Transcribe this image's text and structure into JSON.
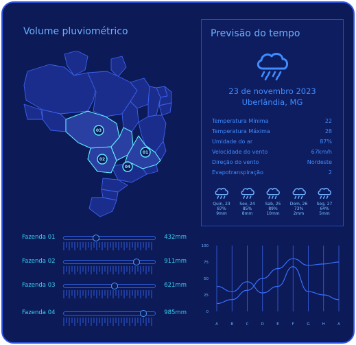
{
  "colors": {
    "background": "#0c1a58",
    "frame": "#2f55e6",
    "accent_text": "#3f8cff",
    "farm_text": "#39d1f0",
    "map_fill": "#1b2d8c",
    "map_highlight": "#2a3fa2",
    "map_border": "#5ff0ff"
  },
  "rain_panel": {
    "title": "Volume pluviométrico"
  },
  "map": {
    "markers": [
      {
        "label": "03"
      },
      {
        "label": "01"
      },
      {
        "label": "02"
      },
      {
        "label": "04"
      }
    ]
  },
  "forecast": {
    "title": "Previsão do tempo",
    "icon": "rain-cloud-icon",
    "date": "23 de novembro 2023",
    "city": "Uberlândia, MG",
    "metrics": [
      {
        "label": "Temperatura Mínima",
        "value": "22"
      },
      {
        "label": "Temperatura Máxima",
        "value": "28"
      },
      {
        "label": "Umidade do ar",
        "value": "87%"
      },
      {
        "label": "Velocidade do vento",
        "value": "67km/h"
      },
      {
        "label": "Direção do vento",
        "value": "Nordeste"
      },
      {
        "label": "Evapotranspiração",
        "value": "2"
      }
    ],
    "days": [
      {
        "day": "Quin, 23",
        "humidity": "87%",
        "rain": "9mm"
      },
      {
        "day": "Sex, 24",
        "humidity": "85%",
        "rain": "8mm"
      },
      {
        "day": "Sab, 25",
        "humidity": "89%",
        "rain": "10mm"
      },
      {
        "day": "Dom, 26",
        "humidity": "73%",
        "rain": "2mm"
      },
      {
        "day": "Seg, 27",
        "humidity": "64%",
        "rain": "5mm"
      }
    ]
  },
  "farms": [
    {
      "name": "Fazenda 01",
      "value": "432mm",
      "level": 0.35
    },
    {
      "name": "Fazenda 02",
      "value": "911mm",
      "level": 0.8
    },
    {
      "name": "Fazenda 03",
      "value": "621mm",
      "level": 0.56
    },
    {
      "name": "Fazenda 04",
      "value": "985mm",
      "level": 0.87
    }
  ],
  "chart_data": {
    "type": "line",
    "title": "",
    "xlabel": "",
    "ylabel": "",
    "categories": [
      "A",
      "B",
      "C",
      "D",
      "E",
      "F",
      "G",
      "H",
      "A"
    ],
    "y_ticks": [
      0,
      25,
      50,
      75,
      100
    ],
    "ylim": [
      0,
      100
    ],
    "grid": "vertical",
    "series": [
      {
        "values": [
          12,
          18,
          32,
          50,
          65,
          80,
          70,
          72,
          75
        ]
      },
      {
        "values": [
          38,
          30,
          45,
          28,
          38,
          68,
          30,
          25,
          18
        ]
      }
    ]
  }
}
